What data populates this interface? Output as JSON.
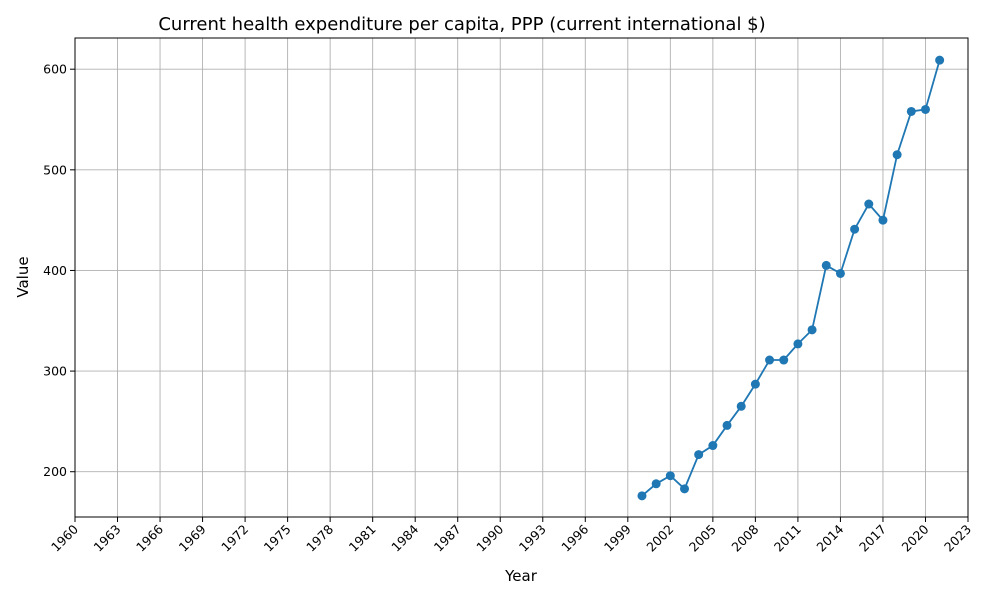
{
  "chart_data": {
    "type": "line",
    "title": "Current health expenditure per capita, PPP (current international $)",
    "xlabel": "Year",
    "ylabel": "Value",
    "xlim": [
      1960,
      2023
    ],
    "ylim": [
      155,
      631
    ],
    "xticks": [
      1960,
      1963,
      1966,
      1969,
      1972,
      1975,
      1978,
      1981,
      1984,
      1987,
      1990,
      1993,
      1996,
      1999,
      2002,
      2005,
      2008,
      2011,
      2014,
      2017,
      2020,
      2023
    ],
    "yticks": [
      200,
      300,
      400,
      500,
      600
    ],
    "grid": true,
    "color": "#1f77b4",
    "series": [
      {
        "x": [
          2000,
          2001,
          2002,
          2003,
          2004,
          2005,
          2006,
          2007,
          2008,
          2009,
          2010,
          2011,
          2012,
          2013,
          2014,
          2015,
          2016,
          2017,
          2018,
          2019,
          2020,
          2021
        ],
        "y": [
          176,
          188,
          196,
          183,
          217,
          226,
          246,
          265,
          287,
          311,
          311,
          327,
          341,
          405,
          397,
          441,
          466,
          450,
          515,
          558,
          560,
          609
        ]
      }
    ]
  }
}
